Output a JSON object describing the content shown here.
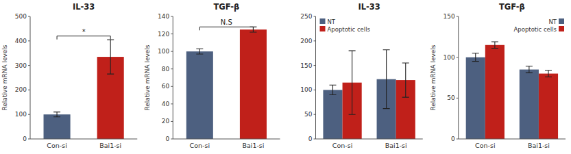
{
  "chart_data": [
    {
      "type": "bar",
      "title": "IL-33",
      "categories": [
        "Con-si",
        "Bai1-si"
      ],
      "values": [
        100,
        335
      ],
      "errors": [
        10,
        70
      ],
      "colors": [
        "#4d6080",
        "#c0201a"
      ],
      "ylabel": "Relative mRNA levels",
      "ylim": [
        0,
        500
      ],
      "yticks": [
        0,
        100,
        200,
        300,
        400,
        500
      ],
      "grid": false,
      "annotations": [
        {
          "text": "*",
          "y": 420
        }
      ]
    },
    {
      "type": "bar",
      "title": "TGF-β",
      "categories": [
        "Con-si",
        "Bai1-si"
      ],
      "values": [
        100,
        125
      ],
      "errors": [
        3,
        3
      ],
      "colors": [
        "#4d6080",
        "#c0201a"
      ],
      "ylabel": "Relative mRNA levels",
      "ylim": [
        0,
        140
      ],
      "yticks": [
        0,
        20,
        40,
        60,
        80,
        100,
        120,
        140
      ],
      "grid": false,
      "annotations": [
        {
          "text": "N.S",
          "y": 128
        }
      ]
    },
    {
      "type": "bar",
      "title": "IL-33",
      "categories": [
        "Con-si",
        "Bai1-si"
      ],
      "series": [
        {
          "name": "NT",
          "color": "#4d6080",
          "values": [
            100,
            122
          ],
          "errors": [
            10,
            60
          ]
        },
        {
          "name": "Apoptotic cells",
          "color": "#c0201a",
          "values": [
            115,
            120
          ],
          "errors": [
            65,
            35
          ]
        }
      ],
      "ylim": [
        0,
        250
      ],
      "yticks": [
        0,
        50,
        100,
        150,
        200,
        250
      ],
      "grid": false,
      "legend": "upper left"
    },
    {
      "type": "bar",
      "title": "TGF-β",
      "categories": [
        "Con-si",
        "Bai1-si"
      ],
      "series": [
        {
          "name": "NT",
          "color": "#4d6080",
          "values": [
            100,
            85
          ],
          "errors": [
            5,
            4
          ]
        },
        {
          "name": "Apoptotic cells",
          "color": "#c0201a",
          "values": [
            115,
            80
          ],
          "errors": [
            4,
            4
          ]
        }
      ],
      "ylabel": "Relative mRNA levels",
      "ylim": [
        0,
        150
      ],
      "yticks": [
        0,
        50,
        100,
        150
      ],
      "grid": false,
      "legend": "upper right"
    }
  ]
}
